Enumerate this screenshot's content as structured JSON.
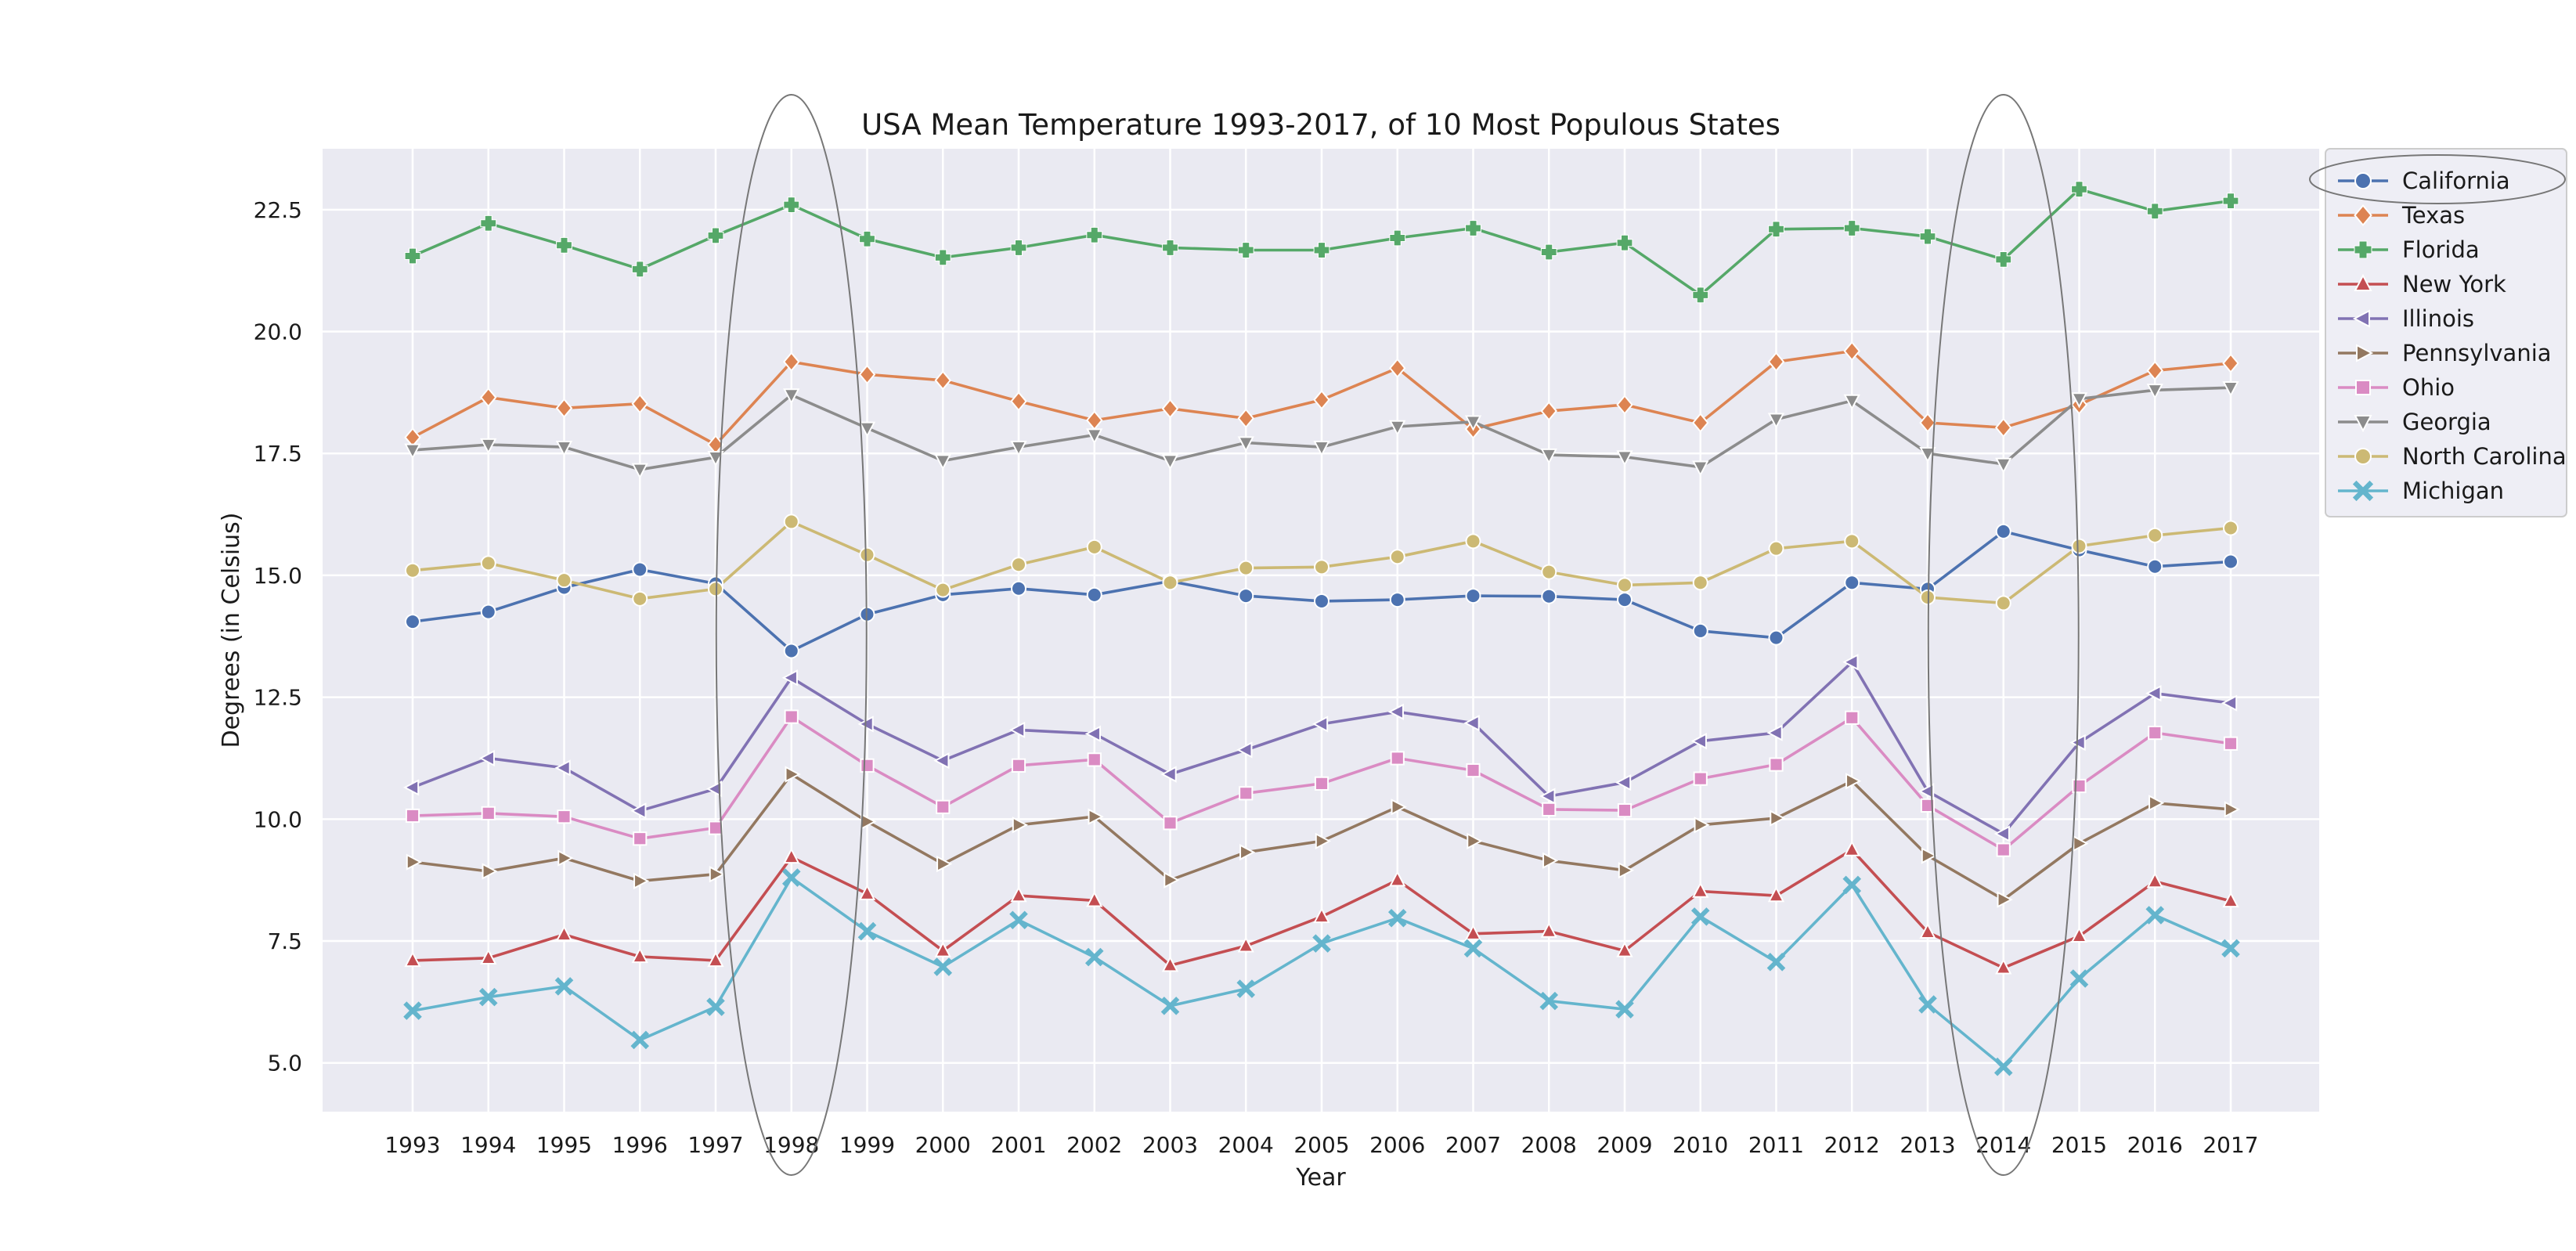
{
  "chart_data": {
    "type": "line",
    "title": "USA Mean Temperature 1993-2017, of 10 Most Populous States",
    "xlabel": "Year",
    "ylabel": "Degrees (in Celsius)",
    "ylim": [
      4.0,
      23.75
    ],
    "yticks": [
      5.0,
      7.5,
      10.0,
      12.5,
      15.0,
      17.5,
      20.0,
      22.5
    ],
    "ytick_labels": [
      "5.0",
      "7.5",
      "10.0",
      "12.5",
      "15.0",
      "17.5",
      "20.0",
      "22.5"
    ],
    "x": [
      "1993",
      "1994",
      "1995",
      "1996",
      "1997",
      "1998",
      "1999",
      "2000",
      "2001",
      "2002",
      "2003",
      "2004",
      "2005",
      "2006",
      "2007",
      "2008",
      "2009",
      "2010",
      "2011",
      "2012",
      "2013",
      "2014",
      "2015",
      "2016",
      "2017"
    ],
    "grid": true,
    "legend_position": "upper right, outside plot",
    "highlighted_years": [
      "1998",
      "2014"
    ],
    "highlighted_legend_entry": "California",
    "series": [
      {
        "name": "California",
        "color": "#4c72b0",
        "marker": "circle",
        "values": [
          14.05,
          14.25,
          14.75,
          15.12,
          14.83,
          13.45,
          14.2,
          14.6,
          14.73,
          14.6,
          14.88,
          14.58,
          14.47,
          14.5,
          14.58,
          14.57,
          14.5,
          13.86,
          13.72,
          14.85,
          14.72,
          15.9,
          15.52,
          15.18,
          15.28
        ]
      },
      {
        "name": "Texas",
        "color": "#dd8452",
        "marker": "diamond",
        "values": [
          17.83,
          18.65,
          18.43,
          18.52,
          17.68,
          19.38,
          19.12,
          19.0,
          18.57,
          18.18,
          18.42,
          18.22,
          18.6,
          19.25,
          18.0,
          18.37,
          18.5,
          18.13,
          19.38,
          19.6,
          18.13,
          18.03,
          18.5,
          19.2,
          19.35
        ]
      },
      {
        "name": "Florida",
        "color": "#55a868",
        "marker": "plus",
        "values": [
          21.55,
          22.22,
          21.77,
          21.28,
          21.97,
          22.6,
          21.9,
          21.52,
          21.72,
          21.98,
          21.72,
          21.67,
          21.67,
          21.92,
          22.12,
          21.63,
          21.82,
          20.75,
          22.1,
          22.12,
          21.95,
          21.48,
          22.92,
          22.47,
          22.68
        ]
      },
      {
        "name": "New York",
        "color": "#c44e52",
        "marker": "triangle-up",
        "values": [
          7.1,
          7.15,
          7.63,
          7.18,
          7.1,
          9.22,
          8.47,
          7.3,
          8.43,
          8.33,
          7.0,
          7.4,
          8.0,
          8.75,
          7.65,
          7.7,
          7.3,
          8.52,
          8.43,
          9.37,
          7.68,
          6.95,
          7.6,
          8.72,
          8.32
        ]
      },
      {
        "name": "Illinois",
        "color": "#8172b3",
        "marker": "triangle-left",
        "values": [
          10.65,
          11.25,
          11.05,
          10.17,
          10.62,
          12.9,
          11.95,
          11.2,
          11.83,
          11.75,
          10.92,
          11.42,
          11.95,
          12.2,
          11.97,
          10.47,
          10.75,
          11.6,
          11.77,
          13.22,
          10.57,
          9.7,
          11.57,
          12.58,
          12.38
        ]
      },
      {
        "name": "Pennsylvania",
        "color": "#937860",
        "marker": "triangle-right",
        "values": [
          9.12,
          8.93,
          9.2,
          8.73,
          8.87,
          10.92,
          9.95,
          9.08,
          9.88,
          10.05,
          8.75,
          9.32,
          9.55,
          10.25,
          9.55,
          9.15,
          8.95,
          9.88,
          10.02,
          10.78,
          9.25,
          8.35,
          9.5,
          10.33,
          10.2
        ]
      },
      {
        "name": "Ohio",
        "color": "#da8bc3",
        "marker": "square",
        "values": [
          10.07,
          10.12,
          10.05,
          9.6,
          9.82,
          12.1,
          11.1,
          10.25,
          11.1,
          11.22,
          9.92,
          10.53,
          10.73,
          11.25,
          11.0,
          10.2,
          10.18,
          10.83,
          11.12,
          12.08,
          10.28,
          9.37,
          10.68,
          11.77,
          11.55
        ]
      },
      {
        "name": "Georgia",
        "color": "#8c8c8c",
        "marker": "triangle-down",
        "values": [
          17.57,
          17.68,
          17.63,
          17.17,
          17.42,
          18.7,
          18.02,
          17.35,
          17.63,
          17.88,
          17.35,
          17.72,
          17.63,
          18.05,
          18.15,
          17.47,
          17.43,
          17.22,
          18.2,
          18.58,
          17.5,
          17.28,
          18.62,
          18.8,
          18.85
        ]
      },
      {
        "name": "North Carolina",
        "color": "#ccb974",
        "marker": "circle",
        "values": [
          15.1,
          15.25,
          14.9,
          14.52,
          14.72,
          16.1,
          15.42,
          14.7,
          15.22,
          15.58,
          14.85,
          15.15,
          15.17,
          15.38,
          15.7,
          15.07,
          14.8,
          14.85,
          15.55,
          15.7,
          14.55,
          14.43,
          15.6,
          15.82,
          15.97
        ]
      },
      {
        "name": "Michigan",
        "color": "#64b5cd",
        "marker": "x",
        "values": [
          6.07,
          6.35,
          6.57,
          5.47,
          6.15,
          8.8,
          7.7,
          6.97,
          7.93,
          7.17,
          6.17,
          6.52,
          7.45,
          7.97,
          7.35,
          6.27,
          6.1,
          8.0,
          7.07,
          8.65,
          6.2,
          4.92,
          6.73,
          8.03,
          7.35
        ]
      }
    ]
  }
}
